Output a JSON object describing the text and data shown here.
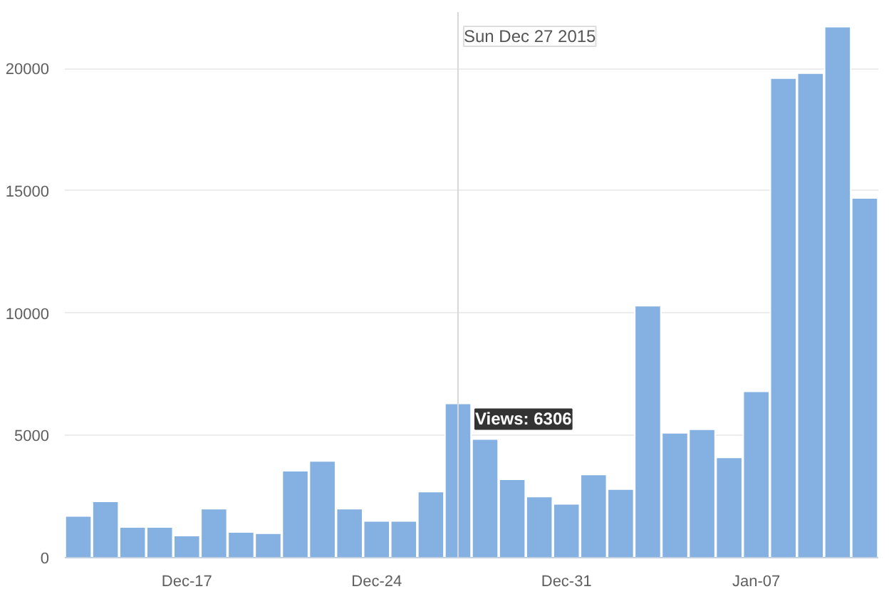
{
  "chart_data": {
    "type": "bar",
    "x": [
      "2015-12-13",
      "2015-12-14",
      "2015-12-15",
      "2015-12-16",
      "2015-12-17",
      "2015-12-18",
      "2015-12-19",
      "2015-12-20",
      "2015-12-21",
      "2015-12-22",
      "2015-12-23",
      "2015-12-24",
      "2015-12-25",
      "2015-12-26",
      "2015-12-27",
      "2015-12-28",
      "2015-12-29",
      "2015-12-30",
      "2015-12-31",
      "2016-01-01",
      "2016-01-02",
      "2016-01-03",
      "2016-01-04",
      "2016-01-05",
      "2016-01-06",
      "2016-01-07",
      "2016-01-08",
      "2016-01-09",
      "2016-01-10",
      "2016-01-11"
    ],
    "values": [
      1700,
      2300,
      1250,
      1250,
      900,
      2000,
      1050,
      1000,
      3550,
      3950,
      2000,
      1500,
      1500,
      2700,
      6306,
      4850,
      3200,
      2500,
      2200,
      3400,
      2800,
      10300,
      5100,
      5250,
      4100,
      6800,
      19600,
      19800,
      21700,
      14700
    ],
    "color": "#84b0e2",
    "xlim": [
      "2015-12-12T12:00",
      "2016-01-11T12:00"
    ],
    "xticks": [
      {
        "value": "2015-12-17",
        "label": "Dec-17"
      },
      {
        "value": "2015-12-24",
        "label": "Dec-24"
      },
      {
        "value": "2015-12-31",
        "label": "Dec-31"
      },
      {
        "value": "2016-01-07",
        "label": "Jan-07"
      }
    ],
    "ylim": [
      0,
      22300
    ],
    "yticks": [
      0,
      5000,
      10000,
      15000,
      20000
    ],
    "grid": "y",
    "ref_lines": [
      {
        "axis": "x",
        "value": "2015-12-27",
        "label": "Sun Dec 27 2015",
        "color": "#d8d8d8"
      }
    ],
    "annotations": [
      {
        "text": "Views: 6306",
        "x": "2015-12-27",
        "y": 6306
      }
    ]
  }
}
